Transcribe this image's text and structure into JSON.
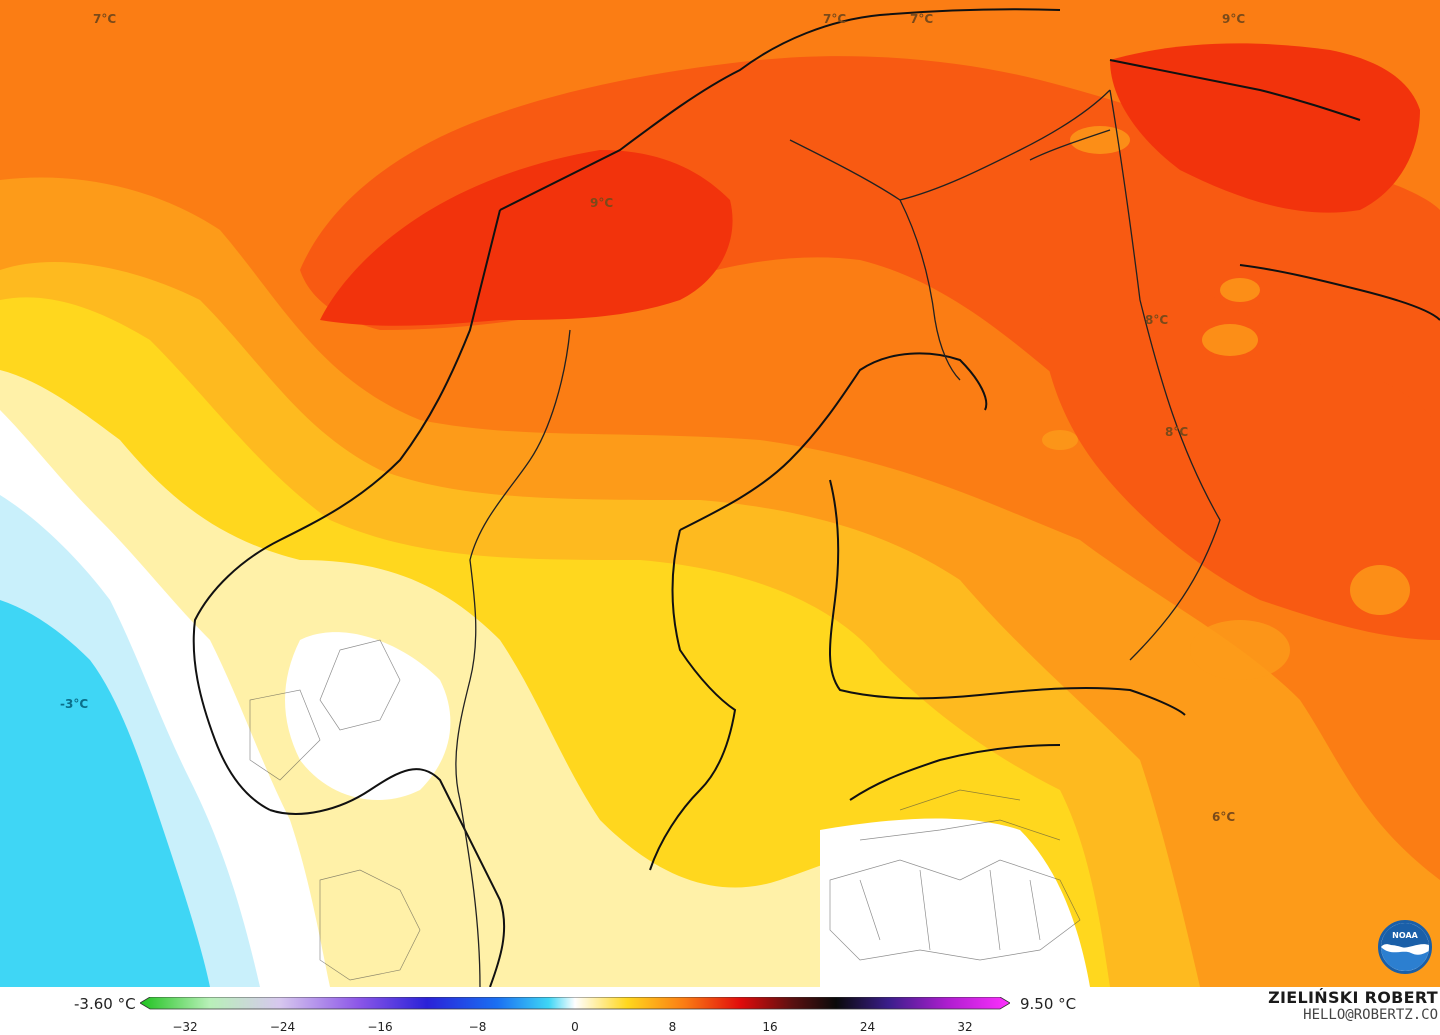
{
  "map": {
    "colors": {
      "deep_red": "#f2330c",
      "red": "#f85a12",
      "orange": "#fb7d14",
      "light_orange": "#fd9b19",
      "amber": "#feba1f",
      "yellow": "#ffd71e",
      "pale_yellow": "#fff1a8",
      "white": "#ffffff",
      "light_blue": "#c9f0fb",
      "cyan": "#3fd6f5",
      "deep_cyan": "#1ec7ee"
    },
    "labels": [
      {
        "id": "nw",
        "text": "7°C"
      },
      {
        "id": "n1",
        "text": "7°C"
      },
      {
        "id": "n2",
        "text": "7°C"
      },
      {
        "id": "ne",
        "text": "9°C"
      },
      {
        "id": "lof",
        "text": "9°C"
      },
      {
        "id": "kar1",
        "text": "8°C"
      },
      {
        "id": "kar2",
        "text": "8°C"
      },
      {
        "id": "sea",
        "text": "-3°C"
      },
      {
        "id": "se",
        "text": "6°C"
      }
    ]
  },
  "legend": {
    "min_value": "-3.60 °C",
    "max_value": "9.50 °C",
    "ticks": [
      "−32",
      "−24",
      "−16",
      "−8",
      "0",
      "8",
      "16",
      "24",
      "32"
    ],
    "gradient_stops": [
      {
        "offset": 0,
        "color": "#1fc21f"
      },
      {
        "offset": 0.08,
        "color": "#b8f0b8"
      },
      {
        "offset": 0.16,
        "color": "#d7c8ee"
      },
      {
        "offset": 0.25,
        "color": "#8d58e8"
      },
      {
        "offset": 0.33,
        "color": "#2a22d8"
      },
      {
        "offset": 0.41,
        "color": "#1a6ff2"
      },
      {
        "offset": 0.47,
        "color": "#3fd6f5"
      },
      {
        "offset": 0.5,
        "color": "#ffffff"
      },
      {
        "offset": 0.56,
        "color": "#ffd71e"
      },
      {
        "offset": 0.625,
        "color": "#fb7d14"
      },
      {
        "offset": 0.69,
        "color": "#e00c0c"
      },
      {
        "offset": 0.75,
        "color": "#5a1010"
      },
      {
        "offset": 0.8,
        "color": "#0a0a0a"
      },
      {
        "offset": 0.86,
        "color": "#3a1e8a"
      },
      {
        "offset": 0.93,
        "color": "#b01ed0"
      },
      {
        "offset": 1,
        "color": "#ff30ff"
      }
    ]
  },
  "credits": {
    "author": "ZIELIŃSKI ROBERT",
    "email": "HELLO@ROBERTZ.CO",
    "logo_text": "NOAA"
  }
}
